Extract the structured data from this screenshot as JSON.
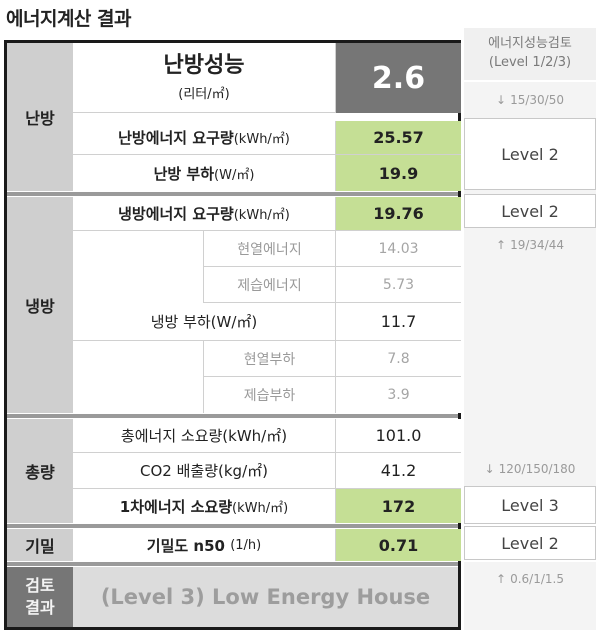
{
  "page_title": "에너지계산 결과",
  "heating": {
    "category": "난방",
    "performance_title": "난방성능",
    "performance_unit": "(리터/㎡)",
    "performance_value": "2.6",
    "demand_label": "난방에너지 요구량",
    "demand_unit": "(kWh/㎡)",
    "demand_value": "25.57",
    "load_label": "난방 부하",
    "load_unit": "(W/㎡)",
    "load_value": "19.9"
  },
  "cooling": {
    "category": "냉방",
    "demand_label": "냉방에너지 요구량",
    "demand_unit": "(kWh/㎡)",
    "demand_value": "19.76",
    "sensible_energy_label": "현열에너지",
    "sensible_energy_value": "14.03",
    "dehum_energy_label": "제습에너지",
    "dehum_energy_value": "5.73",
    "load_label": "냉방 부하(W/㎡)",
    "load_value": "11.7",
    "sensible_load_label": "현열부하",
    "sensible_load_value": "7.8",
    "dehum_load_label": "제습부하",
    "dehum_load_value": "3.9"
  },
  "total": {
    "category": "총량",
    "energy_label": "총에너지 소요량(kWh/㎡)",
    "energy_value": "101.0",
    "co2_label": "CO2 배출량(kg/㎡)",
    "co2_value": "41.2",
    "primary_label": "1차에너지 소요량",
    "primary_unit": "(kWh/㎡)",
    "primary_value": "172"
  },
  "airtight": {
    "category": "기밀",
    "label": "기밀도 n50",
    "unit": "(1/h)",
    "value": "0.71"
  },
  "review": {
    "category_line1": "검토",
    "category_line2": "결과",
    "result": "(Level 3) Low Energy House"
  },
  "right": {
    "header_line1": "에너지성능검토",
    "header_line2": "(Level 1/2/3)",
    "heating_threshold": "15/30/50",
    "heating_level": "Level 2",
    "cooling_level": "Level 2",
    "cooling_threshold": "19/34/44",
    "total_threshold": "120/150/180",
    "total_level": "Level 3",
    "airtight_level": "Level 2",
    "airtight_threshold": "0.6/1/1.5",
    "arrow_down": "↓",
    "arrow_up": "↑"
  },
  "colors": {
    "highlight_green": "#c5df95",
    "performance_box": "#767676",
    "category_bg": "#cfcfcf"
  }
}
